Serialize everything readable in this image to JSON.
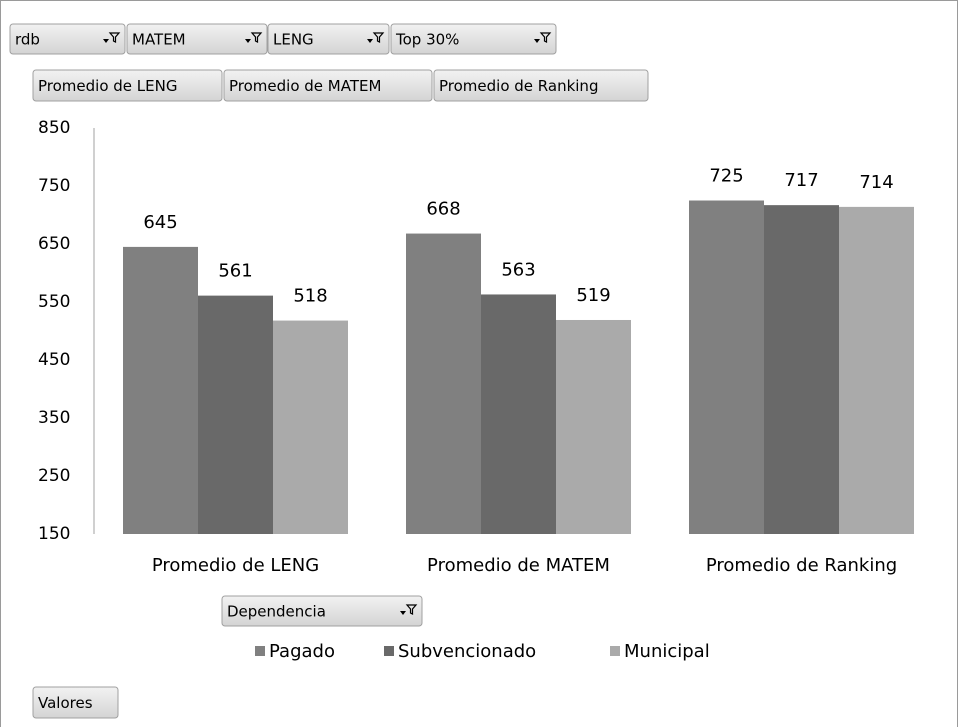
{
  "filters": [
    "rdb",
    "MATEM",
    "LENG",
    "Top 30%"
  ],
  "value_fields": [
    "Promedio de LENG",
    "Promedio de MATEM",
    "Promedio de Ranking"
  ],
  "legend_field": "Dependencia",
  "values_button": "Valores",
  "chart_data": {
    "type": "bar",
    "categories": [
      "Promedio de LENG",
      "Promedio de MATEM",
      "Promedio de Ranking"
    ],
    "series": [
      {
        "name": "Pagado",
        "color": "#808080",
        "values": [
          645,
          668,
          725
        ]
      },
      {
        "name": "Subvencionado",
        "color": "#696969",
        "values": [
          561,
          563,
          717
        ]
      },
      {
        "name": "Municipal",
        "color": "#aaaaaa",
        "values": [
          518,
          519,
          714
        ]
      }
    ],
    "ylim": [
      150,
      850
    ],
    "yticks": [
      150,
      250,
      350,
      450,
      550,
      650,
      750,
      850
    ],
    "grid": false,
    "legend": "bottom"
  }
}
